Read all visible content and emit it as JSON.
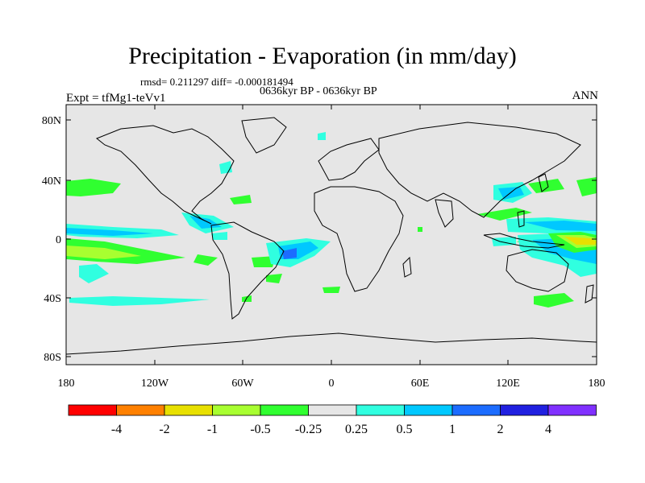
{
  "title": "Precipitation - Evaporation (in mm/day)",
  "stats_line": "rmsd= 0.211297 diff= -0.000181494",
  "period_line": "0636kyr BP - 0636kyr BP",
  "experiment_label": "Expt = tfMg1-teVv1",
  "season_label": "ANN",
  "lat_ticks": [
    "80N",
    "40N",
    "0",
    "40S",
    "80S"
  ],
  "lon_ticks": [
    "180",
    "120W",
    "60W",
    "0",
    "60E",
    "120E",
    "180"
  ],
  "labelbar": {
    "labels": [
      "-4",
      "-2",
      "-1",
      "-0.5",
      "-0.25",
      "0.25",
      "0.5",
      "1",
      "2",
      "4"
    ],
    "colors": [
      "#ff0000",
      "#ff8000",
      "#e8e000",
      "#a8ff30",
      "#30ff30",
      "#e6e6e6",
      "#30ffe0",
      "#00c8ff",
      "#1c6cff",
      "#2020e0",
      "#8030ff"
    ]
  },
  "colors": {
    "ocean_background": "#e6e6e6",
    "coastline": "#000000",
    "frame": "#000000"
  }
}
